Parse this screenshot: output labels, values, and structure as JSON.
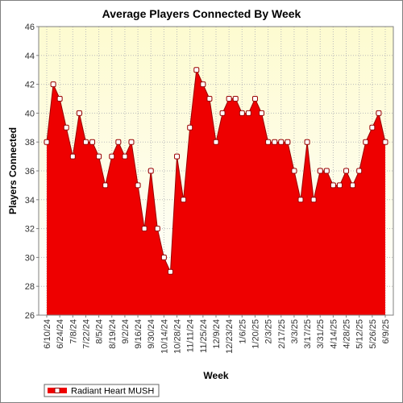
{
  "chart_data": {
    "type": "area",
    "title": "Average Players Connected By Week",
    "xlabel": "Week",
    "ylabel": "Players Connected",
    "ylim": [
      26,
      46
    ],
    "yticks": [
      26,
      28,
      30,
      32,
      34,
      36,
      38,
      40,
      42,
      44,
      46
    ],
    "grid": true,
    "legend_position": "bottom-left",
    "colors": {
      "fill": "#ee0000",
      "line": "#990000",
      "plot_bg_top": "#fdfbd0",
      "plot_bg_bottom": "#ffffff",
      "grid": "#bbbbbb"
    },
    "x_tick_labels": [
      "6/10/24",
      "6/24/24",
      "7/8/24",
      "7/22/24",
      "8/5/24",
      "8/19/24",
      "9/2/24",
      "9/16/24",
      "9/30/24",
      "10/14/24",
      "10/28/24",
      "11/11/24",
      "11/25/24",
      "12/9/24",
      "12/23/24",
      "1/6/25",
      "1/20/25",
      "2/3/25",
      "2/17/25",
      "3/3/25",
      "3/17/25",
      "3/31/25",
      "4/14/25",
      "4/28/25",
      "5/12/25",
      "5/26/25",
      "6/9/25"
    ],
    "series": [
      {
        "name": "Radiant Heart MUSH",
        "x": [
          "6/10/24",
          "6/17/24",
          "6/24/24",
          "7/1/24",
          "7/8/24",
          "7/15/24",
          "7/22/24",
          "7/29/24",
          "8/5/24",
          "8/12/24",
          "8/19/24",
          "8/26/24",
          "9/2/24",
          "9/9/24",
          "9/16/24",
          "9/23/24",
          "9/30/24",
          "10/7/24",
          "10/14/24",
          "10/21/24",
          "10/28/24",
          "11/4/24",
          "11/11/24",
          "11/18/24",
          "11/25/24",
          "12/2/24",
          "12/9/24",
          "12/16/24",
          "12/23/24",
          "12/30/24",
          "1/6/25",
          "1/13/25",
          "1/20/25",
          "1/27/25",
          "2/3/25",
          "2/10/25",
          "2/17/25",
          "2/24/25",
          "3/3/25",
          "3/10/25",
          "3/17/25",
          "3/24/25",
          "3/31/25",
          "4/7/25",
          "4/14/25",
          "4/21/25",
          "4/28/25",
          "5/5/25",
          "5/12/25",
          "5/19/25",
          "5/26/25",
          "6/2/25",
          "6/9/25"
        ],
        "values": [
          38,
          42,
          41,
          39,
          37,
          40,
          38,
          38,
          37,
          35,
          37,
          38,
          37,
          38,
          35,
          32,
          36,
          32,
          30,
          29,
          37,
          34,
          39,
          43,
          42,
          41,
          38,
          40,
          41,
          41,
          40,
          40,
          41,
          40,
          38,
          38,
          38,
          38,
          36,
          34,
          38,
          34,
          36,
          36,
          35,
          35,
          36,
          35,
          36,
          38,
          39,
          40,
          38
        ]
      }
    ]
  }
}
